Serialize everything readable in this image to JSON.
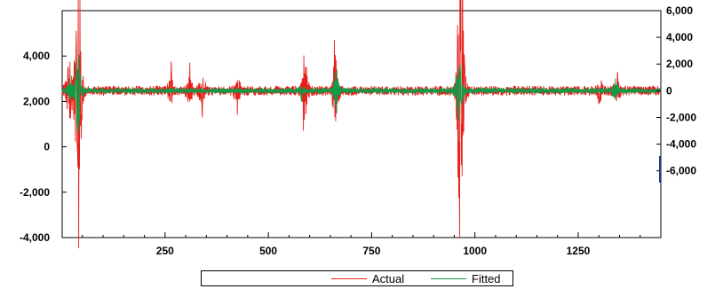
{
  "chart_data": {
    "type": "line",
    "x_ticks": [
      250,
      500,
      750,
      1000,
      1250
    ],
    "xlim": [
      1,
      1450
    ],
    "left_axis": {
      "ylim": [
        -4000,
        6000
      ],
      "ticks": [
        -4000,
        -2000,
        0,
        2000,
        4000
      ],
      "tick_labels": [
        "-4,000",
        "-2,000",
        "0",
        "2,000",
        "4,000"
      ]
    },
    "right_axis": {
      "ylim": [
        -11000,
        6000
      ],
      "ticks": [
        -6000,
        -4000,
        -2000,
        0,
        2000,
        4000,
        6000
      ],
      "tick_labels": [
        "-6,000",
        "-4,000",
        "-2,000",
        "0",
        "2,000",
        "4,000",
        "6,000"
      ]
    },
    "series": [
      {
        "name": "Actual",
        "color": "#e8201c",
        "axis": "right",
        "baseline_amplitude": 300,
        "spikes": [
          {
            "x": 15,
            "y": 1800
          },
          {
            "x": 22,
            "y": -1200
          },
          {
            "x": 35,
            "y": 4500
          },
          {
            "x": 38,
            "y": -4400
          },
          {
            "x": 42,
            "y": 2300
          },
          {
            "x": 48,
            "y": -1800
          },
          {
            "x": 265,
            "y": 2200
          },
          {
            "x": 310,
            "y": 2100
          },
          {
            "x": 340,
            "y": -2000
          },
          {
            "x": 425,
            "y": -1800
          },
          {
            "x": 585,
            "y": -3000
          },
          {
            "x": 590,
            "y": 1800
          },
          {
            "x": 660,
            "y": 3800
          },
          {
            "x": 665,
            "y": -1700
          },
          {
            "x": 960,
            "y": 4200
          },
          {
            "x": 962,
            "y": -3800
          },
          {
            "x": 965,
            "y": 3000
          },
          {
            "x": 968,
            "y": -2500
          },
          {
            "x": 975,
            "y": 1900
          },
          {
            "x": 1345,
            "y": 1400
          },
          {
            "x": 1300,
            "y": -1000
          }
        ]
      },
      {
        "name": "Fitted",
        "color": "#139a47",
        "axis": "right",
        "baseline_amplitude": 180,
        "spikes": [
          {
            "x": 20,
            "y": 1100
          },
          {
            "x": 35,
            "y": 2300
          },
          {
            "x": 40,
            "y": -1800
          },
          {
            "x": 45,
            "y": 1200
          },
          {
            "x": 580,
            "y": -800
          },
          {
            "x": 662,
            "y": 1400
          },
          {
            "x": 665,
            "y": -1700
          },
          {
            "x": 955,
            "y": 1200
          },
          {
            "x": 963,
            "y": 1800
          },
          {
            "x": 968,
            "y": -1000
          },
          {
            "x": 1340,
            "y": 900
          }
        ]
      }
    ],
    "legend": [
      "Actual",
      "Fitted"
    ],
    "legend_position": "bottom-center"
  }
}
